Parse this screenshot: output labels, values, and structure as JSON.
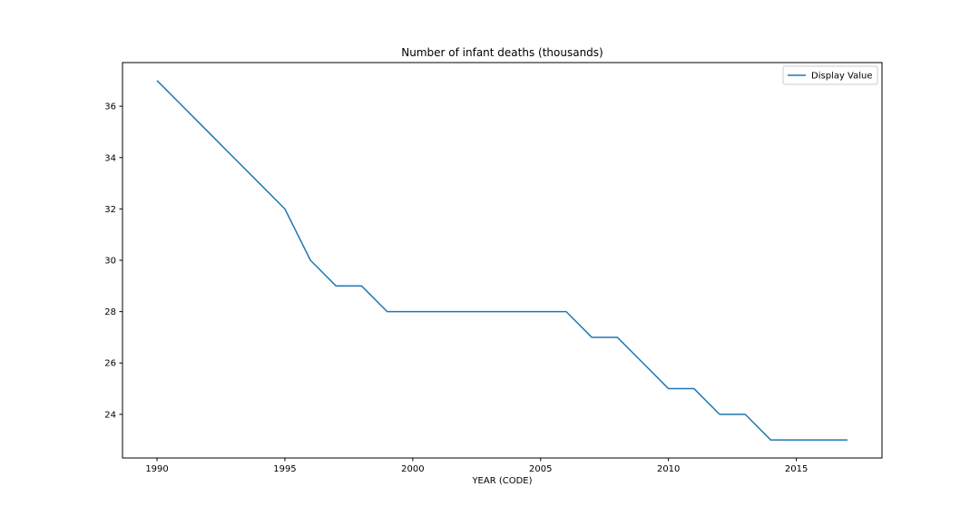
{
  "chart_data": {
    "type": "line",
    "title": "Number of infant deaths (thousands)",
    "xlabel": "YEAR (CODE)",
    "ylabel": "",
    "x": [
      1990,
      1991,
      1992,
      1993,
      1994,
      1995,
      1996,
      1997,
      1998,
      1999,
      2000,
      2001,
      2002,
      2003,
      2004,
      2005,
      2006,
      2007,
      2008,
      2009,
      2010,
      2011,
      2012,
      2013,
      2014,
      2015,
      2016,
      2017
    ],
    "series": [
      {
        "name": "Display Value",
        "color": "#1f77b4",
        "values": [
          37,
          36,
          35,
          34,
          33,
          32,
          30,
          29,
          29,
          28,
          28,
          28,
          28,
          28,
          28,
          28,
          28,
          27,
          27,
          26,
          25,
          25,
          24,
          24,
          23,
          23,
          23,
          23
        ]
      }
    ],
    "xlim": [
      1988.65,
      2018.35
    ],
    "ylim": [
      22.3,
      37.7
    ],
    "xticks": [
      1990,
      1995,
      2000,
      2005,
      2010,
      2015
    ],
    "yticks": [
      24,
      26,
      28,
      30,
      32,
      34,
      36
    ],
    "grid": false,
    "legend_position": "top-right"
  }
}
